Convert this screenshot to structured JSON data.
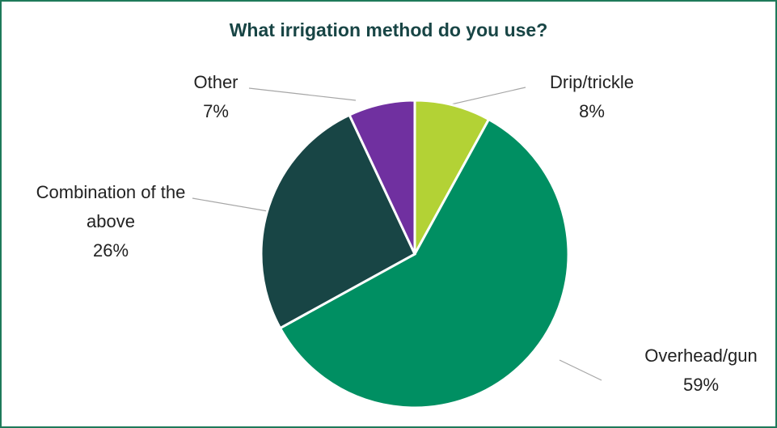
{
  "chart_data": {
    "type": "pie",
    "title": "What irrigation method do you use?",
    "categories": [
      "Drip/trickle",
      "Overhead/gun",
      "Combination of the above",
      "Other"
    ],
    "values": [
      8,
      59,
      26,
      7
    ],
    "value_labels": [
      "8%",
      "59%",
      "26%",
      "7%"
    ],
    "colors": [
      "#b3d235",
      "#008f62",
      "#184545",
      "#7030a0"
    ]
  }
}
